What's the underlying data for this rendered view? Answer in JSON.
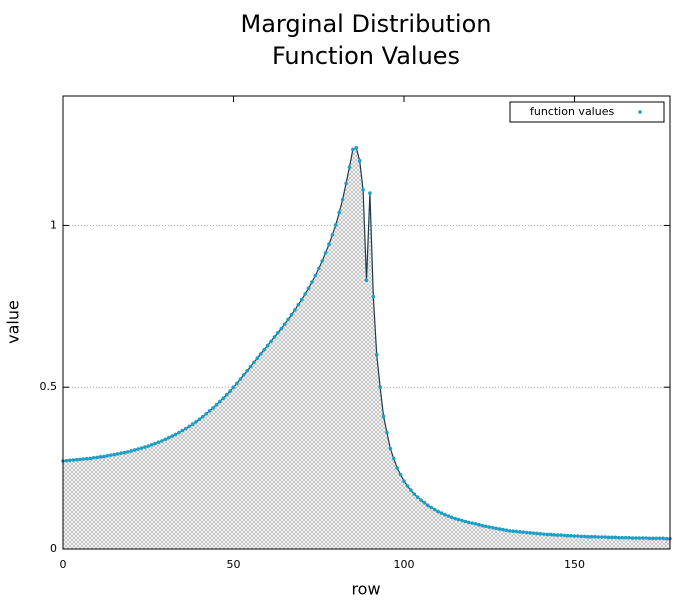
{
  "chart_data": {
    "type": "line",
    "title": [
      "Marginal Distribution",
      "Function Values"
    ],
    "xlabel": "row",
    "ylabel": "value",
    "x": [
      0,
      1,
      2,
      3,
      4,
      5,
      6,
      7,
      8,
      9,
      10,
      11,
      12,
      13,
      14,
      15,
      16,
      17,
      18,
      19,
      20,
      21,
      22,
      23,
      24,
      25,
      26,
      27,
      28,
      29,
      30,
      31,
      32,
      33,
      34,
      35,
      36,
      37,
      38,
      39,
      40,
      41,
      42,
      43,
      44,
      45,
      46,
      47,
      48,
      49,
      50,
      51,
      52,
      53,
      54,
      55,
      56,
      57,
      58,
      59,
      60,
      61,
      62,
      63,
      64,
      65,
      66,
      67,
      68,
      69,
      70,
      71,
      72,
      73,
      74,
      75,
      76,
      77,
      78,
      79,
      80,
      81,
      82,
      83,
      84,
      85,
      86,
      87,
      88,
      89,
      90,
      91,
      92,
      93,
      94,
      95,
      96,
      97,
      98,
      99,
      100,
      101,
      102,
      103,
      104,
      105,
      106,
      107,
      108,
      109,
      110,
      111,
      112,
      113,
      114,
      115,
      116,
      117,
      118,
      119,
      120,
      121,
      122,
      123,
      124,
      125,
      126,
      127,
      128,
      129,
      130,
      131,
      132,
      133,
      134,
      135,
      136,
      137,
      138,
      139,
      140,
      141,
      142,
      143,
      144,
      145,
      146,
      147,
      148,
      149,
      150,
      151,
      152,
      153,
      154,
      155,
      156,
      157,
      158,
      159,
      160,
      161,
      162,
      163,
      164,
      165,
      166,
      167,
      168,
      169,
      170,
      171,
      172,
      173,
      174,
      175,
      176,
      177,
      178
    ],
    "series": [
      {
        "name": "function values",
        "color": "#1aa0c8",
        "line_color": "#1d3b4a",
        "values": [
          0.272,
          0.273,
          0.274,
          0.275,
          0.276,
          0.277,
          0.278,
          0.279,
          0.28,
          0.282,
          0.283,
          0.285,
          0.286,
          0.288,
          0.29,
          0.292,
          0.294,
          0.296,
          0.298,
          0.3,
          0.303,
          0.306,
          0.309,
          0.312,
          0.315,
          0.318,
          0.322,
          0.326,
          0.33,
          0.334,
          0.339,
          0.344,
          0.349,
          0.354,
          0.36,
          0.366,
          0.372,
          0.379,
          0.386,
          0.393,
          0.401,
          0.409,
          0.418,
          0.427,
          0.436,
          0.446,
          0.456,
          0.466,
          0.477,
          0.488,
          0.5,
          0.512,
          0.525,
          0.538,
          0.551,
          0.564,
          0.577,
          0.59,
          0.603,
          0.616,
          0.629,
          0.642,
          0.655,
          0.668,
          0.681,
          0.695,
          0.709,
          0.724,
          0.739,
          0.755,
          0.771,
          0.788,
          0.806,
          0.825,
          0.845,
          0.867,
          0.89,
          0.915,
          0.942,
          0.971,
          1.002,
          1.04,
          1.08,
          1.13,
          1.18,
          1.235,
          1.24,
          1.2,
          1.11,
          0.83,
          1.1,
          0.78,
          0.6,
          0.5,
          0.41,
          0.36,
          0.31,
          0.28,
          0.25,
          0.23,
          0.21,
          0.195,
          0.182,
          0.17,
          0.16,
          0.151,
          0.143,
          0.135,
          0.128,
          0.122,
          0.116,
          0.111,
          0.106,
          0.102,
          0.098,
          0.094,
          0.091,
          0.088,
          0.085,
          0.082,
          0.08,
          0.078,
          0.075,
          0.072,
          0.07,
          0.068,
          0.066,
          0.064,
          0.062,
          0.06,
          0.058,
          0.056,
          0.055,
          0.054,
          0.053,
          0.052,
          0.051,
          0.05,
          0.049,
          0.048,
          0.047,
          0.046,
          0.045,
          0.045,
          0.044,
          0.043,
          0.043,
          0.042,
          0.041,
          0.041,
          0.04,
          0.04,
          0.039,
          0.039,
          0.038,
          0.038,
          0.038,
          0.037,
          0.037,
          0.037,
          0.036,
          0.036,
          0.036,
          0.035,
          0.035,
          0.035,
          0.035,
          0.034,
          0.034,
          0.034,
          0.034,
          0.034,
          0.033,
          0.033,
          0.033,
          0.033,
          0.033,
          0.032,
          0.032
        ]
      }
    ],
    "xlim": [
      0,
      178
    ],
    "ylim": [
      0,
      1.4
    ],
    "xticks": [
      0,
      50,
      100,
      150
    ],
    "yticks": [
      0,
      0.5,
      1
    ],
    "grid": true,
    "legend": "upper right",
    "fill_area": true
  }
}
